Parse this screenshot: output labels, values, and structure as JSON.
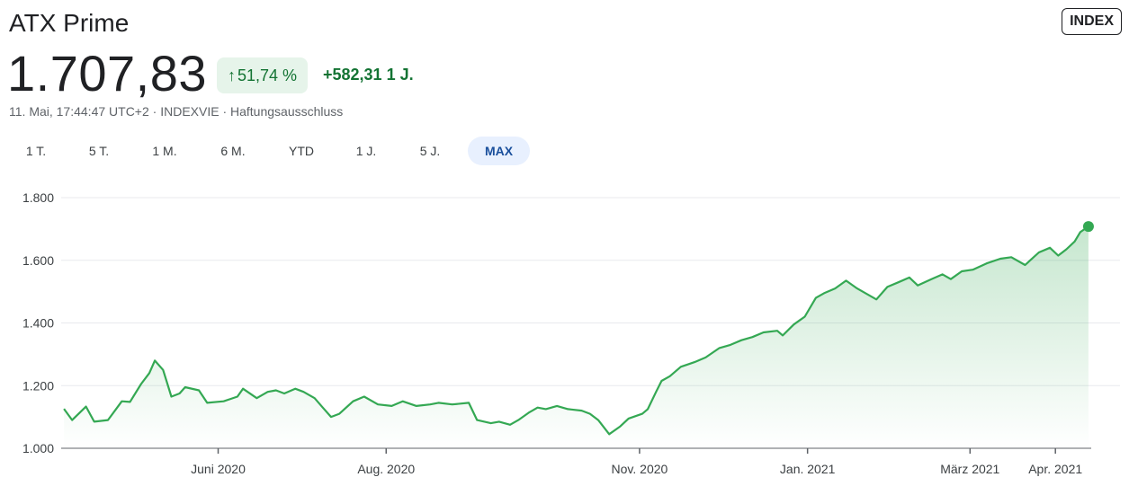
{
  "header": {
    "title": "ATX Prime",
    "badge": "INDEX",
    "price": "1.707,83",
    "change_pct": "51,74 %",
    "change_arrow": "↑",
    "change_abs": "+582,31 1 J.",
    "meta": "11. Mai, 17:44:47 UTC+2 · INDEXVIE · Haftungsausschluss"
  },
  "ranges": [
    "1 T.",
    "5 T.",
    "1 M.",
    "6 M.",
    "YTD",
    "1 J.",
    "5 J.",
    "MAX"
  ],
  "active_range": "MAX",
  "colors": {
    "line": "#34a853",
    "fill": "#34a853",
    "pill_bg": "#e6f4ea",
    "positive_text": "#137333"
  },
  "chart_data": {
    "type": "area",
    "title": "",
    "xlabel": "",
    "ylabel": "",
    "ylim": [
      1000,
      1800
    ],
    "yticks": [
      1000,
      1200,
      1400,
      1600,
      1800
    ],
    "ytick_labels": [
      "1.000",
      "1.200",
      "1.400",
      "1.600",
      "1.800"
    ],
    "xlim": [
      "2020-04-05",
      "2021-04-14"
    ],
    "xticks": [
      {
        "date": "2020-06-01",
        "label": "Juni 2020"
      },
      {
        "date": "2020-08-01",
        "label": "Aug. 2020"
      },
      {
        "date": "2020-11-01",
        "label": "Nov. 2020"
      },
      {
        "date": "2021-01-01",
        "label": "Jan. 2021"
      },
      {
        "date": "2021-03-01",
        "label": "März 2021"
      },
      {
        "date": "2021-04-01",
        "label": "Apr. 2021"
      }
    ],
    "grid": true,
    "series": [
      {
        "points": [
          [
            "2020-04-06",
            1126
          ],
          [
            "2020-04-09",
            1090
          ],
          [
            "2020-04-14",
            1133
          ],
          [
            "2020-04-17",
            1085
          ],
          [
            "2020-04-22",
            1090
          ],
          [
            "2020-04-27",
            1150
          ],
          [
            "2020-04-30",
            1148
          ],
          [
            "2020-05-04",
            1205
          ],
          [
            "2020-05-07",
            1240
          ],
          [
            "2020-05-09",
            1280
          ],
          [
            "2020-05-12",
            1250
          ],
          [
            "2020-05-15",
            1165
          ],
          [
            "2020-05-18",
            1175
          ],
          [
            "2020-05-20",
            1195
          ],
          [
            "2020-05-25",
            1185
          ],
          [
            "2020-05-28",
            1145
          ],
          [
            "2020-06-03",
            1150
          ],
          [
            "2020-06-08",
            1165
          ],
          [
            "2020-06-10",
            1190
          ],
          [
            "2020-06-15",
            1160
          ],
          [
            "2020-06-19",
            1180
          ],
          [
            "2020-06-22",
            1185
          ],
          [
            "2020-06-25",
            1175
          ],
          [
            "2020-06-29",
            1190
          ],
          [
            "2020-07-02",
            1180
          ],
          [
            "2020-07-06",
            1160
          ],
          [
            "2020-07-09",
            1130
          ],
          [
            "2020-07-12",
            1100
          ],
          [
            "2020-07-15",
            1110
          ],
          [
            "2020-07-20",
            1150
          ],
          [
            "2020-07-24",
            1165
          ],
          [
            "2020-07-29",
            1140
          ],
          [
            "2020-08-03",
            1135
          ],
          [
            "2020-08-07",
            1150
          ],
          [
            "2020-08-12",
            1135
          ],
          [
            "2020-08-17",
            1140
          ],
          [
            "2020-08-20",
            1145
          ],
          [
            "2020-08-25",
            1140
          ],
          [
            "2020-08-31",
            1145
          ],
          [
            "2020-09-03",
            1090
          ],
          [
            "2020-09-08",
            1080
          ],
          [
            "2020-09-11",
            1085
          ],
          [
            "2020-09-15",
            1075
          ],
          [
            "2020-09-18",
            1090
          ],
          [
            "2020-09-22",
            1115
          ],
          [
            "2020-09-25",
            1130
          ],
          [
            "2020-09-28",
            1125
          ],
          [
            "2020-10-02",
            1135
          ],
          [
            "2020-10-06",
            1125
          ],
          [
            "2020-10-11",
            1120
          ],
          [
            "2020-10-14",
            1110
          ],
          [
            "2020-10-17",
            1090
          ],
          [
            "2020-10-21",
            1045
          ],
          [
            "2020-10-25",
            1070
          ],
          [
            "2020-10-28",
            1095
          ],
          [
            "2020-11-02",
            1110
          ],
          [
            "2020-11-04",
            1125
          ],
          [
            "2020-11-07",
            1180
          ],
          [
            "2020-11-09",
            1215
          ],
          [
            "2020-11-12",
            1230
          ],
          [
            "2020-11-16",
            1260
          ],
          [
            "2020-11-21",
            1275
          ],
          [
            "2020-11-25",
            1290
          ],
          [
            "2020-11-30",
            1320
          ],
          [
            "2020-12-04",
            1330
          ],
          [
            "2020-12-08",
            1345
          ],
          [
            "2020-12-12",
            1355
          ],
          [
            "2020-12-16",
            1370
          ],
          [
            "2020-12-21",
            1375
          ],
          [
            "2020-12-23",
            1360
          ],
          [
            "2020-12-27",
            1395
          ],
          [
            "2020-12-31",
            1420
          ],
          [
            "2021-01-04",
            1480
          ],
          [
            "2021-01-07",
            1495
          ],
          [
            "2021-01-11",
            1510
          ],
          [
            "2021-01-15",
            1535
          ],
          [
            "2021-01-19",
            1510
          ],
          [
            "2021-01-23",
            1490
          ],
          [
            "2021-01-26",
            1475
          ],
          [
            "2021-01-30",
            1515
          ],
          [
            "2021-02-03",
            1530
          ],
          [
            "2021-02-07",
            1545
          ],
          [
            "2021-02-10",
            1520
          ],
          [
            "2021-02-15",
            1540
          ],
          [
            "2021-02-19",
            1555
          ],
          [
            "2021-02-22",
            1540
          ],
          [
            "2021-02-26",
            1565
          ],
          [
            "2021-03-02",
            1570
          ],
          [
            "2021-03-07",
            1590
          ],
          [
            "2021-03-12",
            1605
          ],
          [
            "2021-03-16",
            1610
          ],
          [
            "2021-03-21",
            1585
          ],
          [
            "2021-03-26",
            1625
          ],
          [
            "2021-03-30",
            1640
          ],
          [
            "2021-04-02",
            1615
          ],
          [
            "2021-04-05",
            1635
          ],
          [
            "2021-04-08",
            1660
          ],
          [
            "2021-04-10",
            1690
          ],
          [
            "2021-04-13",
            1708
          ]
        ]
      }
    ]
  }
}
